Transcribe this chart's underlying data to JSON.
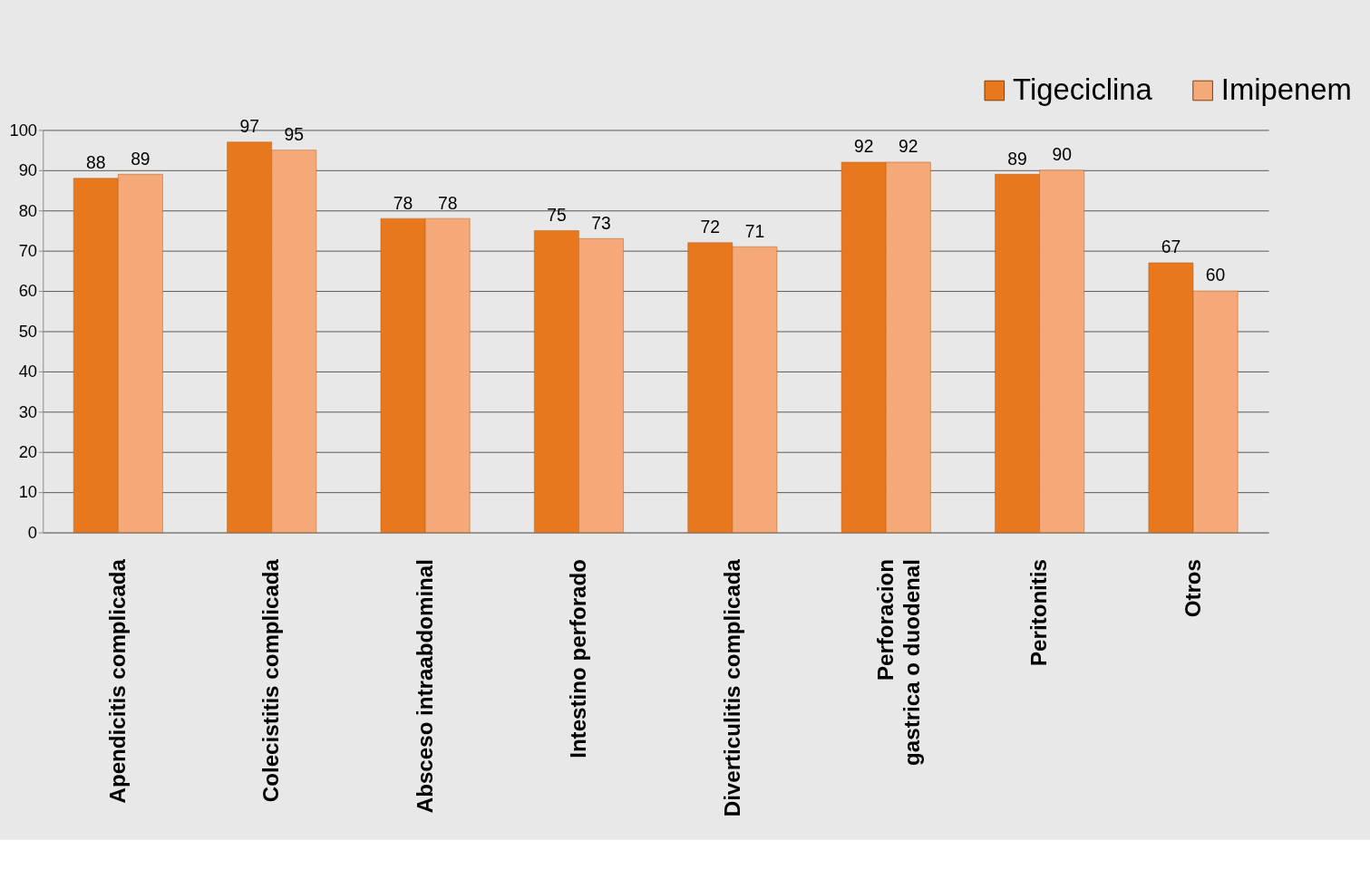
{
  "chart_data": {
    "type": "bar",
    "categories": [
      "Apendicitis complicada",
      "Colecistitis complicada",
      "Absceso intraabdominal",
      "Intestino perforado",
      "Diverticulitis complicada",
      "Perforacion gastrica o duodenal",
      "Peritonitis",
      "Otros"
    ],
    "series": [
      {
        "name": "Tigeciclina",
        "color": "#e8781e",
        "values": [
          88,
          97,
          78,
          75,
          72,
          92,
          89,
          67
        ]
      },
      {
        "name": "Imipenem",
        "color": "#f5a878",
        "values": [
          89,
          95,
          78,
          73,
          71,
          92,
          90,
          60
        ]
      }
    ],
    "ylim": [
      0,
      100
    ],
    "yticks": [
      0,
      10,
      20,
      30,
      40,
      50,
      60,
      70,
      80,
      90,
      100
    ],
    "grid": "y",
    "legend": "top right",
    "data_labels": true
  }
}
